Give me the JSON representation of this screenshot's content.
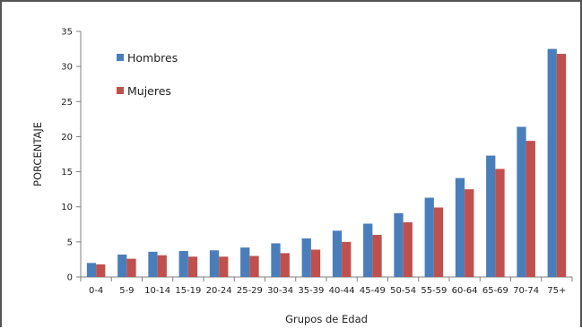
{
  "chart_data": {
    "type": "bar",
    "title": "",
    "xlabel": "Grupos de Edad",
    "ylabel": "PORCENTAJE",
    "ylim": [
      0,
      35
    ],
    "yticks": [
      0,
      5,
      10,
      15,
      20,
      25,
      30,
      35
    ],
    "grid": false,
    "legend_position": "top-left",
    "categories": [
      "0-4",
      "5-9",
      "10-14",
      "15-19",
      "20-24",
      "25-29",
      "30-34",
      "35-39",
      "40-44",
      "45-49",
      "50-54",
      "55-59",
      "60-64",
      "65-69",
      "70-74",
      "75+"
    ],
    "series": [
      {
        "name": "Hombres",
        "color": "#4a7ebb",
        "values": [
          2.0,
          3.2,
          3.6,
          3.7,
          3.8,
          4.2,
          4.8,
          5.5,
          6.6,
          7.6,
          9.1,
          11.3,
          14.1,
          17.3,
          21.4,
          32.5
        ]
      },
      {
        "name": "Mujeres",
        "color": "#c0504d",
        "values": [
          1.8,
          2.6,
          3.1,
          2.9,
          2.9,
          3.0,
          3.4,
          3.9,
          5.0,
          6.0,
          7.8,
          9.9,
          12.5,
          15.4,
          19.4,
          31.8
        ]
      }
    ]
  }
}
